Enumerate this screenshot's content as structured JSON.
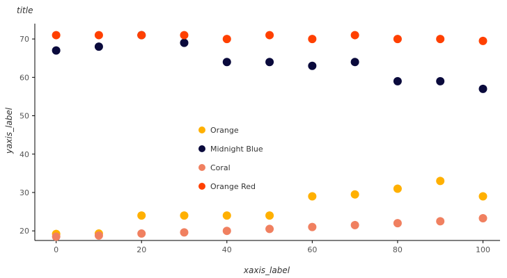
{
  "chart_data": {
    "type": "scatter",
    "title": "title",
    "xlabel": "xaxis_label",
    "ylabel": "yaxis_label",
    "xlim": [
      -5,
      104
    ],
    "ylim": [
      17.5,
      74
    ],
    "xticks": [
      0,
      20,
      40,
      60,
      80,
      100
    ],
    "yticks": [
      20,
      30,
      40,
      50,
      60,
      70
    ],
    "grid": false,
    "legend_position": "center",
    "series": [
      {
        "name": "Orange",
        "color": "#FFB000",
        "x": [
          0,
          10,
          20,
          30,
          40,
          50,
          60,
          70,
          80,
          90,
          100
        ],
        "y": [
          19.2,
          19.3,
          24.0,
          24.0,
          24.0,
          24.0,
          29.0,
          29.5,
          31.0,
          33.0,
          29.0
        ]
      },
      {
        "name": "Midnight Blue",
        "color": "#0A0A3C",
        "x": [
          0,
          10,
          20,
          30,
          40,
          50,
          60,
          70,
          80,
          90,
          100
        ],
        "y": [
          67.0,
          68.0,
          71.0,
          69.0,
          64.0,
          64.0,
          63.0,
          64.0,
          59.0,
          59.0,
          57.0
        ]
      },
      {
        "name": "Coral",
        "color": "#F08060",
        "x": [
          0,
          10,
          20,
          30,
          40,
          50,
          60,
          70,
          80,
          90,
          100
        ],
        "y": [
          18.5,
          18.8,
          19.3,
          19.6,
          20.0,
          20.5,
          21.0,
          21.5,
          22.0,
          22.5,
          23.3
        ]
      },
      {
        "name": "Orange Red",
        "color": "#FF4000",
        "x": [
          0,
          10,
          20,
          30,
          40,
          50,
          60,
          70,
          80,
          90,
          100
        ],
        "y": [
          71.0,
          71.0,
          71.0,
          71.0,
          70.0,
          71.0,
          70.0,
          71.0,
          70.0,
          70.0,
          69.5
        ]
      }
    ]
  }
}
